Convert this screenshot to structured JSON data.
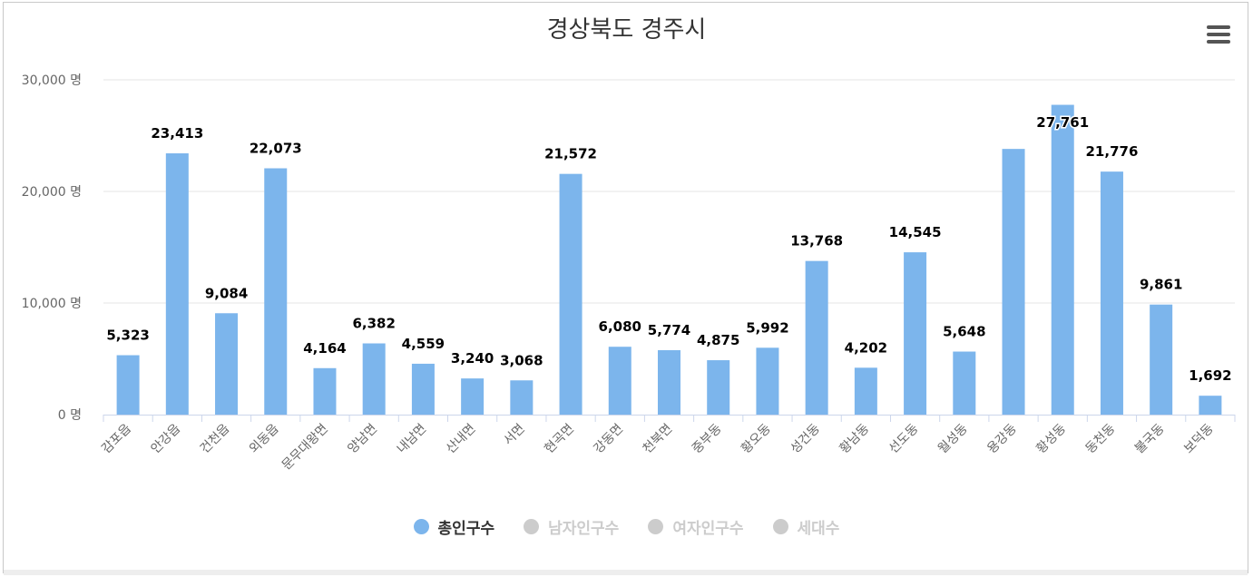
{
  "title": "경상북도 경주시",
  "y_tick_labels": [
    "0 명",
    "10,000 명",
    "20,000 명",
    "30,000 명"
  ],
  "legend": [
    {
      "label": "총인구수",
      "active": true,
      "color": "#7cb5ec"
    },
    {
      "label": "남자인구수",
      "active": false,
      "color": "#cccccc"
    },
    {
      "label": "여자인구수",
      "active": false,
      "color": "#cccccc"
    },
    {
      "label": "세대수",
      "active": false,
      "color": "#cccccc"
    }
  ],
  "colors": {
    "bar": "#7cb5ec",
    "grid": "#e6e6e6",
    "axis": "#ccd6eb",
    "label": "#666666",
    "data_label": "#000000"
  },
  "chart_data": {
    "type": "bar",
    "title": "경상북도 경주시",
    "xlabel": "",
    "ylabel": "",
    "ylim": [
      0,
      30000
    ],
    "grid": true,
    "legend_position": "bottom-center",
    "categories": [
      "감포읍",
      "안강읍",
      "건천읍",
      "외동읍",
      "문무대왕면",
      "양남면",
      "내남면",
      "산내면",
      "서면",
      "현곡면",
      "강동면",
      "천북면",
      "중부동",
      "황오동",
      "성건동",
      "황남동",
      "선도동",
      "월성동",
      "용강동",
      "황성동",
      "동천동",
      "불국동",
      "보덕동"
    ],
    "series": [
      {
        "name": "총인구수",
        "values": [
          5323,
          23413,
          9084,
          22073,
          4164,
          6382,
          4559,
          3240,
          3068,
          21572,
          6080,
          5774,
          4875,
          5992,
          13768,
          4202,
          14545,
          5648,
          23809,
          27761,
          21776,
          9861,
          1692
        ],
        "data_labels": [
          "5,323",
          "23,413",
          "9,084",
          "22,073",
          "4,164",
          "6,382",
          "4,559",
          "3,240",
          "3,068",
          "21,572",
          "6,080",
          "5,774",
          "4,875",
          "5,992",
          "13,768",
          "4,202",
          "14,545",
          "5,648",
          "",
          "27,761",
          "21,776",
          "9,861",
          "1,692"
        ]
      }
    ]
  }
}
